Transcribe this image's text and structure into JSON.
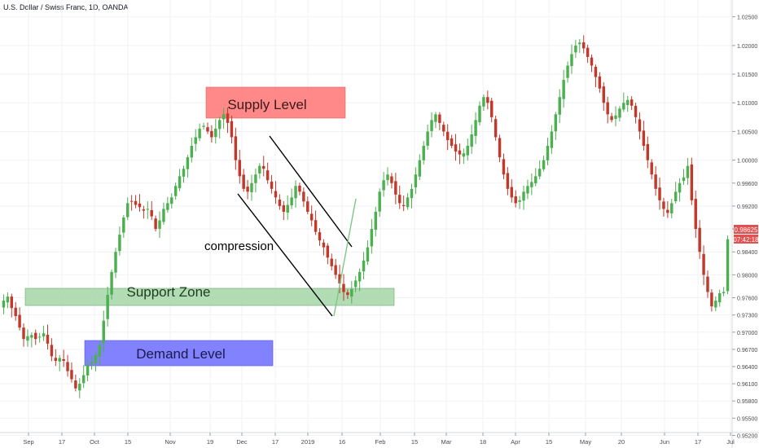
{
  "header": {
    "symbol_title": "U.S. Dollar / Swiss Franc, 1D, OANDA"
  },
  "chart_data": {
    "type": "candlestick",
    "title": "U.S. Dollar / Swiss Franc, 1D, OANDA",
    "ylim": [
      0.9515,
      1.0268
    ],
    "y_ticks": [
      "1.02500",
      "1.02000",
      "1.01500",
      "1.01000",
      "1.00500",
      "1.00000",
      "0.99600",
      "0.99200",
      "0.98800",
      "0.98400",
      "0.98000",
      "0.97600",
      "0.97300",
      "0.97000",
      "0.96700",
      "0.96400",
      "0.96100",
      "0.95800",
      "0.95500",
      "0.95200"
    ],
    "x_ticks": [
      "Sep",
      "17",
      "Oct",
      "15",
      "Nov",
      "19",
      "Dec",
      "17",
      "2019",
      "16",
      "Feb",
      "15",
      "Mar",
      "18",
      "Apr",
      "15",
      "May",
      "20",
      "Jun",
      "17",
      "Jul"
    ],
    "last_price": "0.98625",
    "countdown": "07:42:18",
    "close_series": [
      0.9755,
      0.9762,
      0.9742,
      0.9728,
      0.9708,
      0.9688,
      0.9693,
      0.9695,
      0.9688,
      0.9692,
      0.9698,
      0.968,
      0.9658,
      0.965,
      0.9655,
      0.965,
      0.9632,
      0.9618,
      0.9602,
      0.961,
      0.9625,
      0.9642,
      0.9648,
      0.966,
      0.9678,
      0.972,
      0.9765,
      0.9805,
      0.984,
      0.987,
      0.99,
      0.9925,
      0.9928,
      0.9922,
      0.9918,
      0.9912,
      0.9915,
      0.9902,
      0.988,
      0.9895,
      0.9915,
      0.9925,
      0.9935,
      0.9955,
      0.9972,
      0.9985,
      1.0005,
      1.0025,
      1.004,
      1.0055,
      1.006,
      1.005,
      1.004,
      1.0055,
      1.007,
      1.008,
      1.0065,
      1.004,
      1.0,
      0.9972,
      0.995,
      0.9945,
      0.996,
      0.9975,
      0.999,
      0.9985,
      0.9965,
      0.995,
      0.9935,
      0.992,
      0.991,
      0.9922,
      0.9935,
      0.9955,
      0.9945,
      0.9928,
      0.991,
      0.9895,
      0.9875,
      0.986,
      0.9848,
      0.983,
      0.9815,
      0.98,
      0.9785,
      0.977,
      0.9765,
      0.9775,
      0.979,
      0.9805,
      0.9825,
      0.9848,
      0.988,
      0.991,
      0.9945,
      0.9965,
      0.9975,
      0.996,
      0.994,
      0.9925,
      0.992,
      0.9935,
      0.995,
      0.9975,
      1.0,
      1.0025,
      1.005,
      1.007,
      1.008,
      1.0065,
      1.005,
      1.0035,
      1.0025,
      1.0015,
      1.001,
      1.0012,
      1.0025,
      1.0045,
      1.007,
      1.0095,
      1.011,
      1.01,
      1.0075,
      1.004,
      1.0005,
      0.9975,
      0.995,
      0.9935,
      0.9925,
      0.993,
      0.9945,
      0.9955,
      0.9962,
      0.9972,
      0.9985,
      1.0,
      1.0025,
      1.005,
      1.008,
      1.011,
      1.014,
      1.0165,
      1.0185,
      1.02,
      1.0205,
      1.0195,
      1.018,
      1.0165,
      1.0145,
      1.0125,
      1.01,
      1.008,
      1.007,
      1.0078,
      1.009,
      1.01,
      1.0105,
      1.0095,
      1.0075,
      1.005,
      1.0025,
      1.0,
      0.9975,
      0.995,
      0.993,
      0.9915,
      0.9908,
      0.9925,
      0.9945,
      0.996,
      0.997,
      0.999,
      0.993,
      0.988,
      0.984,
      0.98,
      0.977,
      0.9745,
      0.9755,
      0.9768,
      0.977,
      0.9862
    ]
  },
  "annotations": {
    "supply": "Supply Level",
    "support": "Support Zone",
    "demand": "Demand Level",
    "compression": "compression"
  },
  "colors": {
    "bull": "#4CAF50",
    "bear": "#C0392B",
    "supply_fill": "#FF7B7B",
    "support_fill": "#A5D6A7",
    "demand_fill": "#7B7BFF",
    "price_tag": "#E05252",
    "axis_text": "#4A4A4A",
    "title_text": "#131722",
    "grid": "#F0F2F5"
  }
}
